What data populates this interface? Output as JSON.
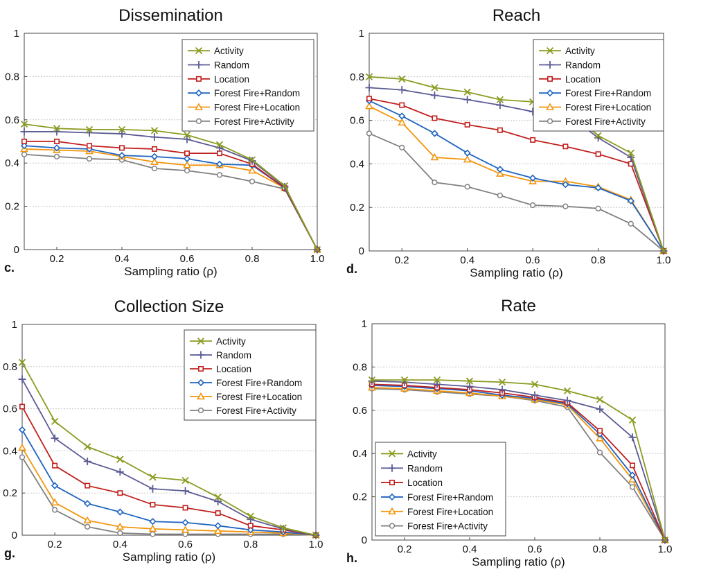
{
  "series_styles": [
    {
      "name": "Activity",
      "color": "#8b9b20",
      "marker": "x"
    },
    {
      "name": "Random",
      "color": "#5b5b95",
      "marker": "plus"
    },
    {
      "name": "Location",
      "color": "#c0201e",
      "marker": "square"
    },
    {
      "name": "Forest Fire+Random",
      "color": "#1e64c0",
      "marker": "diamond"
    },
    {
      "name": "Forest Fire+Location",
      "color": "#f2950c",
      "marker": "triangle"
    },
    {
      "name": "Forest Fire+Activity",
      "color": "#808080",
      "marker": "circle"
    }
  ],
  "chart_data": [
    {
      "type": "line",
      "title": "Dissemination",
      "panel_label": "c.",
      "xlabel": "Sampling ratio (ρ)",
      "ylabel": "",
      "xlim": [
        0.1,
        1.0
      ],
      "ylim": [
        0,
        1
      ],
      "xticks": [
        "0.2",
        "0.4",
        "0.6",
        "0.8",
        "1.0"
      ],
      "yticks": [
        "0",
        "0.2",
        "0.4",
        "0.6",
        "0.8",
        "1"
      ],
      "grid": true,
      "legend": "top-right",
      "x": [
        0.1,
        0.2,
        0.3,
        0.4,
        0.5,
        0.6,
        0.7,
        0.8,
        0.9,
        1.0
      ],
      "series": [
        {
          "name": "Activity",
          "values": [
            0.58,
            0.56,
            0.555,
            0.555,
            0.55,
            0.53,
            0.485,
            0.415,
            0.295,
            0
          ]
        },
        {
          "name": "Random",
          "values": [
            0.545,
            0.545,
            0.54,
            0.535,
            0.52,
            0.51,
            0.47,
            0.41,
            0.29,
            0
          ]
        },
        {
          "name": "Location",
          "values": [
            0.5,
            0.5,
            0.48,
            0.47,
            0.465,
            0.445,
            0.445,
            0.395,
            0.285,
            0
          ]
        },
        {
          "name": "Forest Fire+Random",
          "values": [
            0.48,
            0.47,
            0.465,
            0.435,
            0.43,
            0.42,
            0.395,
            0.39,
            0.285,
            0
          ]
        },
        {
          "name": "Forest Fire+Location",
          "values": [
            0.465,
            0.46,
            0.455,
            0.43,
            0.405,
            0.39,
            0.39,
            0.365,
            0.285,
            0
          ]
        },
        {
          "name": "Forest Fire+Activity",
          "values": [
            0.44,
            0.43,
            0.42,
            0.415,
            0.375,
            0.365,
            0.345,
            0.315,
            0.28,
            0
          ]
        }
      ]
    },
    {
      "type": "line",
      "title": "Reach",
      "panel_label": "d.",
      "xlabel": "Sampling ratio (ρ)",
      "ylabel": "",
      "xlim": [
        0.1,
        1.0
      ],
      "ylim": [
        0,
        1
      ],
      "xticks": [
        "0.2",
        "0.4",
        "0.6",
        "0.8",
        "1.0"
      ],
      "yticks": [
        "0",
        "0.2",
        "0.4",
        "0.6",
        "0.8",
        "1"
      ],
      "grid": true,
      "legend": "top-right",
      "x": [
        0.1,
        0.2,
        0.3,
        0.4,
        0.5,
        0.6,
        0.7,
        0.8,
        0.9,
        1.0
      ],
      "series": [
        {
          "name": "Activity",
          "values": [
            0.8,
            0.79,
            0.75,
            0.73,
            0.695,
            0.685,
            0.655,
            0.53,
            0.45,
            0
          ]
        },
        {
          "name": "Random",
          "values": [
            0.75,
            0.74,
            0.715,
            0.695,
            0.67,
            0.64,
            0.635,
            0.52,
            0.43,
            0
          ]
        },
        {
          "name": "Location",
          "values": [
            0.7,
            0.67,
            0.61,
            0.58,
            0.555,
            0.51,
            0.48,
            0.445,
            0.4,
            0
          ]
        },
        {
          "name": "Forest Fire+Random",
          "values": [
            0.69,
            0.62,
            0.54,
            0.45,
            0.375,
            0.335,
            0.305,
            0.29,
            0.23,
            0
          ]
        },
        {
          "name": "Forest Fire+Location",
          "values": [
            0.665,
            0.59,
            0.43,
            0.42,
            0.355,
            0.32,
            0.32,
            0.295,
            0.235,
            0
          ]
        },
        {
          "name": "Forest Fire+Activity",
          "values": [
            0.54,
            0.475,
            0.315,
            0.295,
            0.255,
            0.21,
            0.205,
            0.195,
            0.125,
            0
          ]
        }
      ]
    },
    {
      "type": "line",
      "title": "Collection Size",
      "panel_label": "g.",
      "xlabel": "Sampling ratio (ρ)",
      "ylabel": "",
      "xlim": [
        0.1,
        1.0
      ],
      "ylim": [
        0,
        1
      ],
      "xticks": [
        "0.2",
        "0.4",
        "0.6",
        "0.8",
        "1.0"
      ],
      "yticks": [
        "0",
        "0.2",
        "0.4",
        "0.6",
        "0.8",
        "1"
      ],
      "grid": true,
      "legend": "top-right",
      "x": [
        0.1,
        0.2,
        0.3,
        0.4,
        0.5,
        0.6,
        0.7,
        0.8,
        0.9,
        1.0
      ],
      "series": [
        {
          "name": "Activity",
          "values": [
            0.82,
            0.54,
            0.42,
            0.36,
            0.275,
            0.26,
            0.18,
            0.09,
            0.035,
            0
          ]
        },
        {
          "name": "Random",
          "values": [
            0.74,
            0.46,
            0.35,
            0.3,
            0.22,
            0.21,
            0.16,
            0.075,
            0.03,
            0
          ]
        },
        {
          "name": "Location",
          "values": [
            0.61,
            0.33,
            0.235,
            0.2,
            0.145,
            0.13,
            0.105,
            0.045,
            0.025,
            0
          ]
        },
        {
          "name": "Forest Fire+Random",
          "values": [
            0.5,
            0.235,
            0.15,
            0.11,
            0.065,
            0.06,
            0.045,
            0.025,
            0.015,
            0
          ]
        },
        {
          "name": "Forest Fire+Location",
          "values": [
            0.415,
            0.155,
            0.07,
            0.04,
            0.03,
            0.025,
            0.02,
            0.015,
            0.01,
            0
          ]
        },
        {
          "name": "Forest Fire+Activity",
          "values": [
            0.37,
            0.12,
            0.04,
            0.01,
            0.005,
            0.005,
            0.005,
            0.005,
            0.005,
            0
          ]
        }
      ]
    },
    {
      "type": "line",
      "title": "Rate",
      "panel_label": "h.",
      "xlabel": "Sampling ratio (ρ)",
      "ylabel": "",
      "xlim": [
        0.1,
        1.0
      ],
      "ylim": [
        0,
        1
      ],
      "xticks": [
        "0.2",
        "0.4",
        "0.6",
        "0.8",
        "1.0"
      ],
      "yticks": [
        "0",
        "0.2",
        "0.4",
        "0.6",
        "0.8",
        "1"
      ],
      "grid": true,
      "legend": "bottom-left",
      "x": [
        0.1,
        0.2,
        0.3,
        0.4,
        0.5,
        0.6,
        0.7,
        0.8,
        0.9,
        1.0
      ],
      "series": [
        {
          "name": "Activity",
          "values": [
            0.74,
            0.74,
            0.74,
            0.735,
            0.73,
            0.72,
            0.69,
            0.65,
            0.555,
            0
          ]
        },
        {
          "name": "Random",
          "values": [
            0.735,
            0.73,
            0.72,
            0.71,
            0.695,
            0.67,
            0.645,
            0.605,
            0.475,
            0
          ]
        },
        {
          "name": "Location",
          "values": [
            0.72,
            0.715,
            0.705,
            0.695,
            0.68,
            0.66,
            0.635,
            0.505,
            0.345,
            0
          ]
        },
        {
          "name": "Forest Fire+Random",
          "values": [
            0.715,
            0.71,
            0.7,
            0.69,
            0.67,
            0.655,
            0.63,
            0.49,
            0.3,
            0
          ]
        },
        {
          "name": "Forest Fire+Location",
          "values": [
            0.705,
            0.7,
            0.69,
            0.68,
            0.665,
            0.65,
            0.625,
            0.47,
            0.28,
            0
          ]
        },
        {
          "name": "Forest Fire+Activity",
          "values": [
            0.7,
            0.695,
            0.685,
            0.675,
            0.665,
            0.645,
            0.615,
            0.405,
            0.245,
            0
          ]
        }
      ]
    }
  ]
}
